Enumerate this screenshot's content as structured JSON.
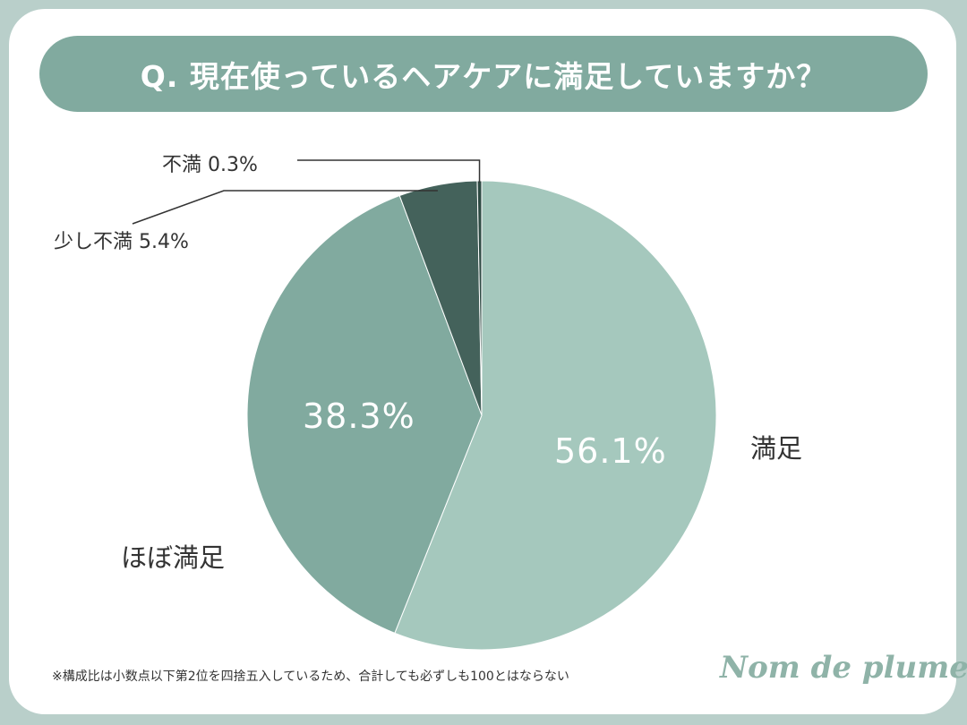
{
  "title": "Q. 現在使っているヘアケアに満足していますか？",
  "chart_data": {
    "type": "pie",
    "title": "Q. 現在使っているヘアケアに満足していますか？",
    "slices": [
      {
        "label": "満足",
        "value": 56.1,
        "display": "56.1%",
        "color": "#a5c8bd"
      },
      {
        "label": "ほぼ満足",
        "value": 38.3,
        "display": "38.3%",
        "color": "#81aa9f"
      },
      {
        "label": "少し不満",
        "value": 5.4,
        "display": "5.4%",
        "color": "#44625b"
      },
      {
        "label": "不満",
        "value": 0.3,
        "display": "0.3%",
        "color": "#2e4a43"
      }
    ],
    "start": "12 o'clock",
    "direction": "clockwise"
  },
  "labels": {
    "satisfied": "満足",
    "mostly_satisfied": "ほぼ満足",
    "slightly_dissatisfied": "少し不満 5.4%",
    "dissatisfied": "不満 0.3%"
  },
  "footnote": "※構成比は小数点以下第2位を四捨五入しているため、合計しても必ずしも100とはならない",
  "brand": "Nom de plume"
}
